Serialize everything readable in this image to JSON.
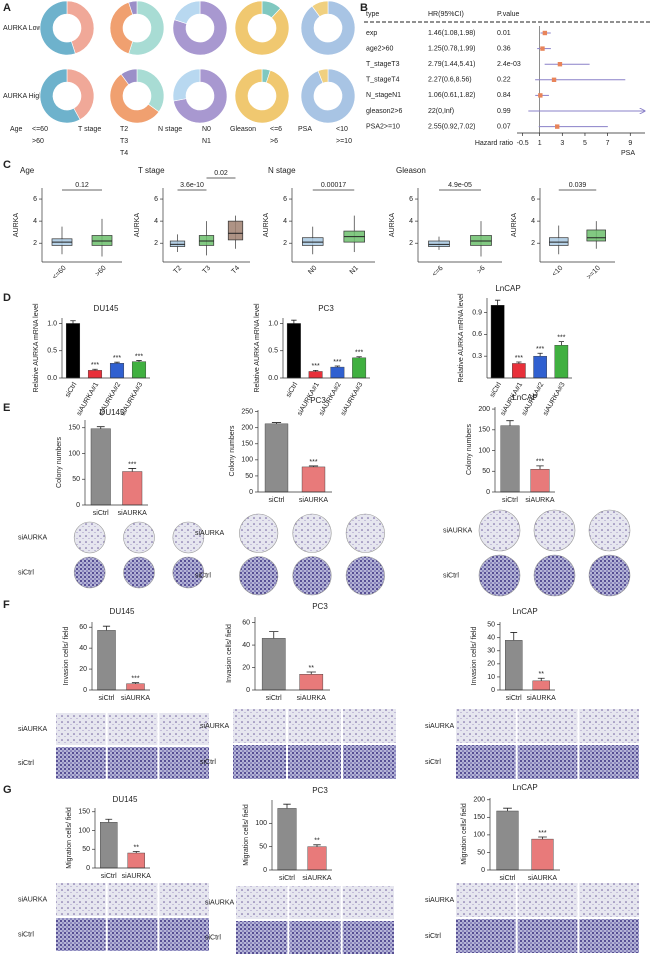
{
  "panels": [
    "A",
    "B",
    "C",
    "D",
    "E",
    "F",
    "G"
  ],
  "row_labels": [
    "AURKA Low",
    "AURKA High"
  ],
  "chart_data": [
    {
      "type": "pie",
      "title": "Age",
      "categories": [
        "<=60",
        ">60"
      ],
      "colors": [
        "#f0a898",
        "#6eb2cc"
      ],
      "series": [
        {
          "values": [
            45,
            55
          ]
        },
        {
          "values": [
            42,
            58
          ]
        }
      ]
    },
    {
      "type": "pie",
      "title": "T stage",
      "categories": [
        "T2",
        "T3",
        "T4"
      ],
      "colors": [
        "#a8dcd4",
        "#f0a070",
        "#9b8fc8"
      ],
      "series": [
        {
          "values": [
            55,
            40,
            5
          ]
        },
        {
          "values": [
            35,
            55,
            10
          ]
        }
      ]
    },
    {
      "type": "pie",
      "title": "N stage",
      "categories": [
        "N0",
        "N1"
      ],
      "colors": [
        "#a898d0",
        "#b8d8f0"
      ],
      "series": [
        {
          "values": [
            80,
            20
          ]
        },
        {
          "values": [
            72,
            28
          ]
        }
      ]
    },
    {
      "type": "pie",
      "title": "Gleason",
      "categories": [
        "<=6",
        ">6"
      ],
      "colors": [
        "#80c8c0",
        "#f0c870"
      ],
      "series": [
        {
          "values": [
            12,
            88
          ]
        },
        {
          "values": [
            5,
            95
          ]
        }
      ]
    },
    {
      "type": "pie",
      "title": "PSA",
      "categories": [
        "<10",
        ">=10"
      ],
      "colors": [
        "#a8c4e4",
        "#f0d080"
      ],
      "series": [
        {
          "values": [
            90,
            10
          ]
        },
        {
          "values": [
            94,
            6
          ]
        }
      ]
    },
    {
      "type": "forest",
      "columns": [
        "type",
        "HR(95%CI)",
        "P.value"
      ],
      "categories": [
        "exp",
        "age2>60",
        "T_stageT3",
        "T_stageT4",
        "N_stageN1",
        "gleason2>6",
        "PSA2>=10"
      ],
      "values": [
        1.46,
        1.25,
        2.79,
        2.27,
        1.06,
        22,
        2.55
      ],
      "lower": [
        1.08,
        0.78,
        1.44,
        0.6,
        0.61,
        0,
        0.92
      ],
      "upper": [
        1.98,
        1.99,
        5.41,
        8.56,
        1.82,
        null,
        7.02
      ],
      "value_labels": [
        "1.46(1.08,1.98)",
        "1.25(0.78,1.99)",
        "2.79(1.44,5.41)",
        "2.27(0.6,8.56)",
        "1.06(0.61,1.82)",
        "22(0,Inf)",
        "2.55(0.92,7.02)"
      ],
      "p_values": [
        "0.01",
        "0.36",
        "2.4e-03",
        "0.22",
        "0.84",
        "0.99",
        "0.07"
      ],
      "xlabel": "Hazard ratio",
      "note": "PSA",
      "reference_line": 1,
      "xlim": [
        -1,
        10.3
      ],
      "xticks": [
        -0.5,
        1,
        3,
        5,
        7,
        9
      ]
    },
    {
      "type": "box",
      "title": "Age",
      "ylabel": "AURKA",
      "categories": [
        "<=60",
        ">60"
      ],
      "colors": [
        "#a8c8e0",
        "#6cbf6c"
      ],
      "boxes": [
        {
          "min": 1.0,
          "q1": 1.8,
          "median": 2.1,
          "q3": 2.4,
          "max": 3.5
        },
        {
          "min": 0.8,
          "q1": 1.8,
          "median": 2.2,
          "q3": 2.7,
          "max": 4.2
        }
      ],
      "comparisons": [
        "0.12"
      ],
      "ylim": [
        0.3,
        7
      ],
      "yticks": [
        2,
        4,
        6
      ]
    },
    {
      "type": "box",
      "title": "T stage",
      "ylabel": "AURKA",
      "categories": [
        "T2",
        "T3",
        "T4"
      ],
      "colors": [
        "#a8c8e0",
        "#6cbf6c",
        "#a08070"
      ],
      "boxes": [
        {
          "min": 1.2,
          "q1": 1.7,
          "median": 1.9,
          "q3": 2.2,
          "max": 2.8
        },
        {
          "min": 0.9,
          "q1": 1.8,
          "median": 2.2,
          "q3": 2.7,
          "max": 4.0
        },
        {
          "min": 1.5,
          "q1": 2.3,
          "median": 2.9,
          "q3": 4.0,
          "max": 4.5
        }
      ],
      "comparisons": [
        "3.6e-10",
        "0.02"
      ],
      "ylim": [
        0.3,
        7
      ],
      "yticks": [
        2,
        4,
        6
      ]
    },
    {
      "type": "box",
      "title": "N stage",
      "ylabel": "AURKA",
      "categories": [
        "N0",
        "N1"
      ],
      "colors": [
        "#a8c8e0",
        "#6cbf6c"
      ],
      "boxes": [
        {
          "min": 1.0,
          "q1": 1.8,
          "median": 2.1,
          "q3": 2.5,
          "max": 3.5
        },
        {
          "min": 1.2,
          "q1": 2.1,
          "median": 2.6,
          "q3": 3.1,
          "max": 4.5
        }
      ],
      "comparisons": [
        "0.00017"
      ],
      "ylim": [
        0.3,
        7
      ],
      "yticks": [
        2,
        4,
        6
      ]
    },
    {
      "type": "box",
      "title": "Gleason",
      "ylabel": "AURKA",
      "categories": [
        "<=6",
        ">6"
      ],
      "colors": [
        "#a8c8e0",
        "#6cbf6c"
      ],
      "boxes": [
        {
          "min": 1.4,
          "q1": 1.7,
          "median": 1.9,
          "q3": 2.2,
          "max": 2.6
        },
        {
          "min": 0.8,
          "q1": 1.8,
          "median": 2.2,
          "q3": 2.7,
          "max": 4.0
        }
      ],
      "comparisons": [
        "4.9e-05"
      ],
      "ylim": [
        0.3,
        7
      ],
      "yticks": [
        2,
        4,
        6
      ]
    },
    {
      "type": "box",
      "ylabel": "AURKA",
      "categories": [
        "<10",
        ">=10"
      ],
      "colors": [
        "#a8c8e0",
        "#6cbf6c"
      ],
      "boxes": [
        {
          "min": 1.0,
          "q1": 1.8,
          "median": 2.1,
          "q3": 2.5,
          "max": 3.6
        },
        {
          "min": 1.5,
          "q1": 2.2,
          "median": 2.5,
          "q3": 3.2,
          "max": 4.0
        }
      ],
      "comparisons": [
        "0.039"
      ],
      "ylim": [
        0.3,
        7
      ],
      "yticks": [
        2,
        4,
        6
      ]
    },
    {
      "type": "bar",
      "title": "DU145",
      "ylabel": "Relative AURKA mRNA level",
      "categories": [
        "siCtrl",
        "siAURKA#1",
        "siAURKA#2",
        "siAURKA#3"
      ],
      "colors": [
        "#000000",
        "#e8303a",
        "#3060d0",
        "#40b040"
      ],
      "values": [
        1.0,
        0.14,
        0.27,
        0.3
      ],
      "errors": [
        0.05,
        0.02,
        0.02,
        0.02
      ],
      "significance": [
        null,
        "***",
        "***",
        "***"
      ],
      "ylim": [
        0,
        1.1
      ],
      "yticks": [
        {
          "value": 0,
          "label": "0.0"
        },
        {
          "value": 0.5,
          "label": "0.5"
        },
        {
          "value": 1,
          "label": "1.0"
        }
      ]
    },
    {
      "type": "bar",
      "title": "PC3",
      "ylabel": "Relative AURKA mRNA level",
      "categories": [
        "siCtrl",
        "siAURKA#1",
        "siAURKA#2",
        "siAURKA#3"
      ],
      "colors": [
        "#000000",
        "#e8303a",
        "#3060d0",
        "#40b040"
      ],
      "values": [
        1.0,
        0.12,
        0.2,
        0.37
      ],
      "errors": [
        0.06,
        0.02,
        0.02,
        0.02
      ],
      "significance": [
        null,
        "***",
        "***",
        "***"
      ],
      "ylim": [
        0,
        1.1
      ],
      "yticks": [
        {
          "value": 0,
          "label": "0.0"
        },
        {
          "value": 0.5,
          "label": "0.5"
        },
        {
          "value": 1,
          "label": "1.0"
        }
      ]
    },
    {
      "type": "bar",
      "title": "LnCAP",
      "ylabel": "Relative AURKA mRNA level",
      "categories": [
        "siCtrl",
        "siAURKA#1",
        "siAURKA#2",
        "siAURKA#3"
      ],
      "colors": [
        "#000000",
        "#e8303a",
        "#3060d0",
        "#40b040"
      ],
      "values": [
        1.0,
        0.2,
        0.3,
        0.45
      ],
      "errors": [
        0.07,
        0.02,
        0.04,
        0.05
      ],
      "significance": [
        null,
        "***",
        "***",
        "***"
      ],
      "ylim": [
        0,
        1.1
      ],
      "yticks": [
        0.3,
        0.6,
        0.9
      ]
    },
    {
      "type": "bar",
      "title": "DU145",
      "ylabel": "Colony numbers",
      "categories": [
        "siCtrl",
        "siAURKA"
      ],
      "colors": [
        "#8c8c8c",
        "#e87a7a"
      ],
      "values": [
        148,
        65
      ],
      "errors": [
        4,
        6
      ],
      "significance": [
        null,
        "***"
      ],
      "ylim": [
        0,
        165
      ],
      "yticks": [
        0,
        50,
        100,
        150
      ],
      "image_rows": [
        "siAURKA",
        "siCtrl"
      ]
    },
    {
      "type": "bar",
      "title": "PC3",
      "ylabel": "Colony numbers",
      "categories": [
        "siCtrl",
        "siAURKA"
      ],
      "colors": [
        "#8c8c8c",
        "#e87a7a"
      ],
      "values": [
        212,
        78
      ],
      "errors": [
        4,
        3
      ],
      "significance": [
        null,
        "***"
      ],
      "ylim": [
        0,
        255
      ],
      "yticks": [
        0,
        50,
        100,
        150,
        200,
        250
      ],
      "image_rows": [
        "siAURKA",
        "siCtrl"
      ]
    },
    {
      "type": "bar",
      "title": "LnCAP",
      "ylabel": "Colony numbers",
      "categories": [
        "siCtrl",
        "siAURKA"
      ],
      "colors": [
        "#8c8c8c",
        "#e87a7a"
      ],
      "values": [
        160,
        55
      ],
      "errors": [
        12,
        8
      ],
      "significance": [
        null,
        "***"
      ],
      "ylim": [
        0,
        205
      ],
      "yticks": [
        0,
        50,
        100,
        150,
        200
      ],
      "image_rows": [
        "siAURKA",
        "siCtrl"
      ]
    },
    {
      "type": "bar",
      "title": "DU145",
      "ylabel": "Invasion cells/ field",
      "categories": [
        "siCtrl",
        "siAURKA"
      ],
      "colors": [
        "#8c8c8c",
        "#e87a7a"
      ],
      "values": [
        57,
        6
      ],
      "errors": [
        4,
        1
      ],
      "significance": [
        null,
        "***"
      ],
      "ylim": [
        0,
        65
      ],
      "yticks": [
        0,
        20,
        40,
        60
      ],
      "image_rows": [
        "siAURKA",
        "siCtrl"
      ]
    },
    {
      "type": "bar",
      "title": "PC3",
      "ylabel": "Invasion cells/ field",
      "categories": [
        "siCtrl",
        "siAURKA"
      ],
      "colors": [
        "#8c8c8c",
        "#e87a7a"
      ],
      "values": [
        46,
        14
      ],
      "errors": [
        6,
        2
      ],
      "significance": [
        null,
        "**"
      ],
      "ylim": [
        0,
        65
      ],
      "yticks": [
        0,
        20,
        40,
        60
      ],
      "image_rows": [
        "siAURKA",
        "siCtrl"
      ]
    },
    {
      "type": "bar",
      "title": "LnCAP",
      "ylabel": "Invasion cells/ field",
      "categories": [
        "siCtrl",
        "siAURKA"
      ],
      "colors": [
        "#8c8c8c",
        "#e87a7a"
      ],
      "values": [
        38,
        7
      ],
      "errors": [
        6,
        2
      ],
      "significance": [
        null,
        "**"
      ],
      "ylim": [
        0,
        52
      ],
      "yticks": [
        0,
        10,
        20,
        30,
        40,
        50
      ],
      "image_rows": [
        "siAURKA",
        "siCtrl"
      ]
    },
    {
      "type": "bar",
      "title": "DU145",
      "ylabel": "Migration cells/ field",
      "categories": [
        "siCtrl",
        "siAURKA"
      ],
      "colors": [
        "#8c8c8c",
        "#e87a7a"
      ],
      "values": [
        122,
        40
      ],
      "errors": [
        8,
        4
      ],
      "significance": [
        null,
        "**"
      ],
      "ylim": [
        0,
        160
      ],
      "yticks": [
        0,
        50,
        100,
        150
      ],
      "image_rows": [
        "siAURKA",
        "siCtrl"
      ]
    },
    {
      "type": "bar",
      "title": "PC3",
      "ylabel": "Migration cells/ field",
      "categories": [
        "siCtrl",
        "siAURKA"
      ],
      "colors": [
        "#8c8c8c",
        "#e87a7a"
      ],
      "values": [
        132,
        50
      ],
      "errors": [
        9,
        4
      ],
      "significance": [
        null,
        "**"
      ],
      "ylim": [
        0,
        150
      ],
      "yticks": [
        0,
        50,
        100
      ],
      "image_rows": [
        "siAURKA",
        "siCtrl"
      ]
    },
    {
      "type": "bar",
      "title": "LnCAP",
      "ylabel": "Migration cells/ field",
      "categories": [
        "siCtrl",
        "siAURKA"
      ],
      "colors": [
        "#8c8c8c",
        "#e87a7a"
      ],
      "values": [
        168,
        88
      ],
      "errors": [
        8,
        6
      ],
      "significance": [
        null,
        "***"
      ],
      "ylim": [
        0,
        205
      ],
      "yticks": [
        0,
        50,
        100,
        150,
        200
      ],
      "image_rows": [
        "siAURKA",
        "siCtrl"
      ]
    }
  ]
}
